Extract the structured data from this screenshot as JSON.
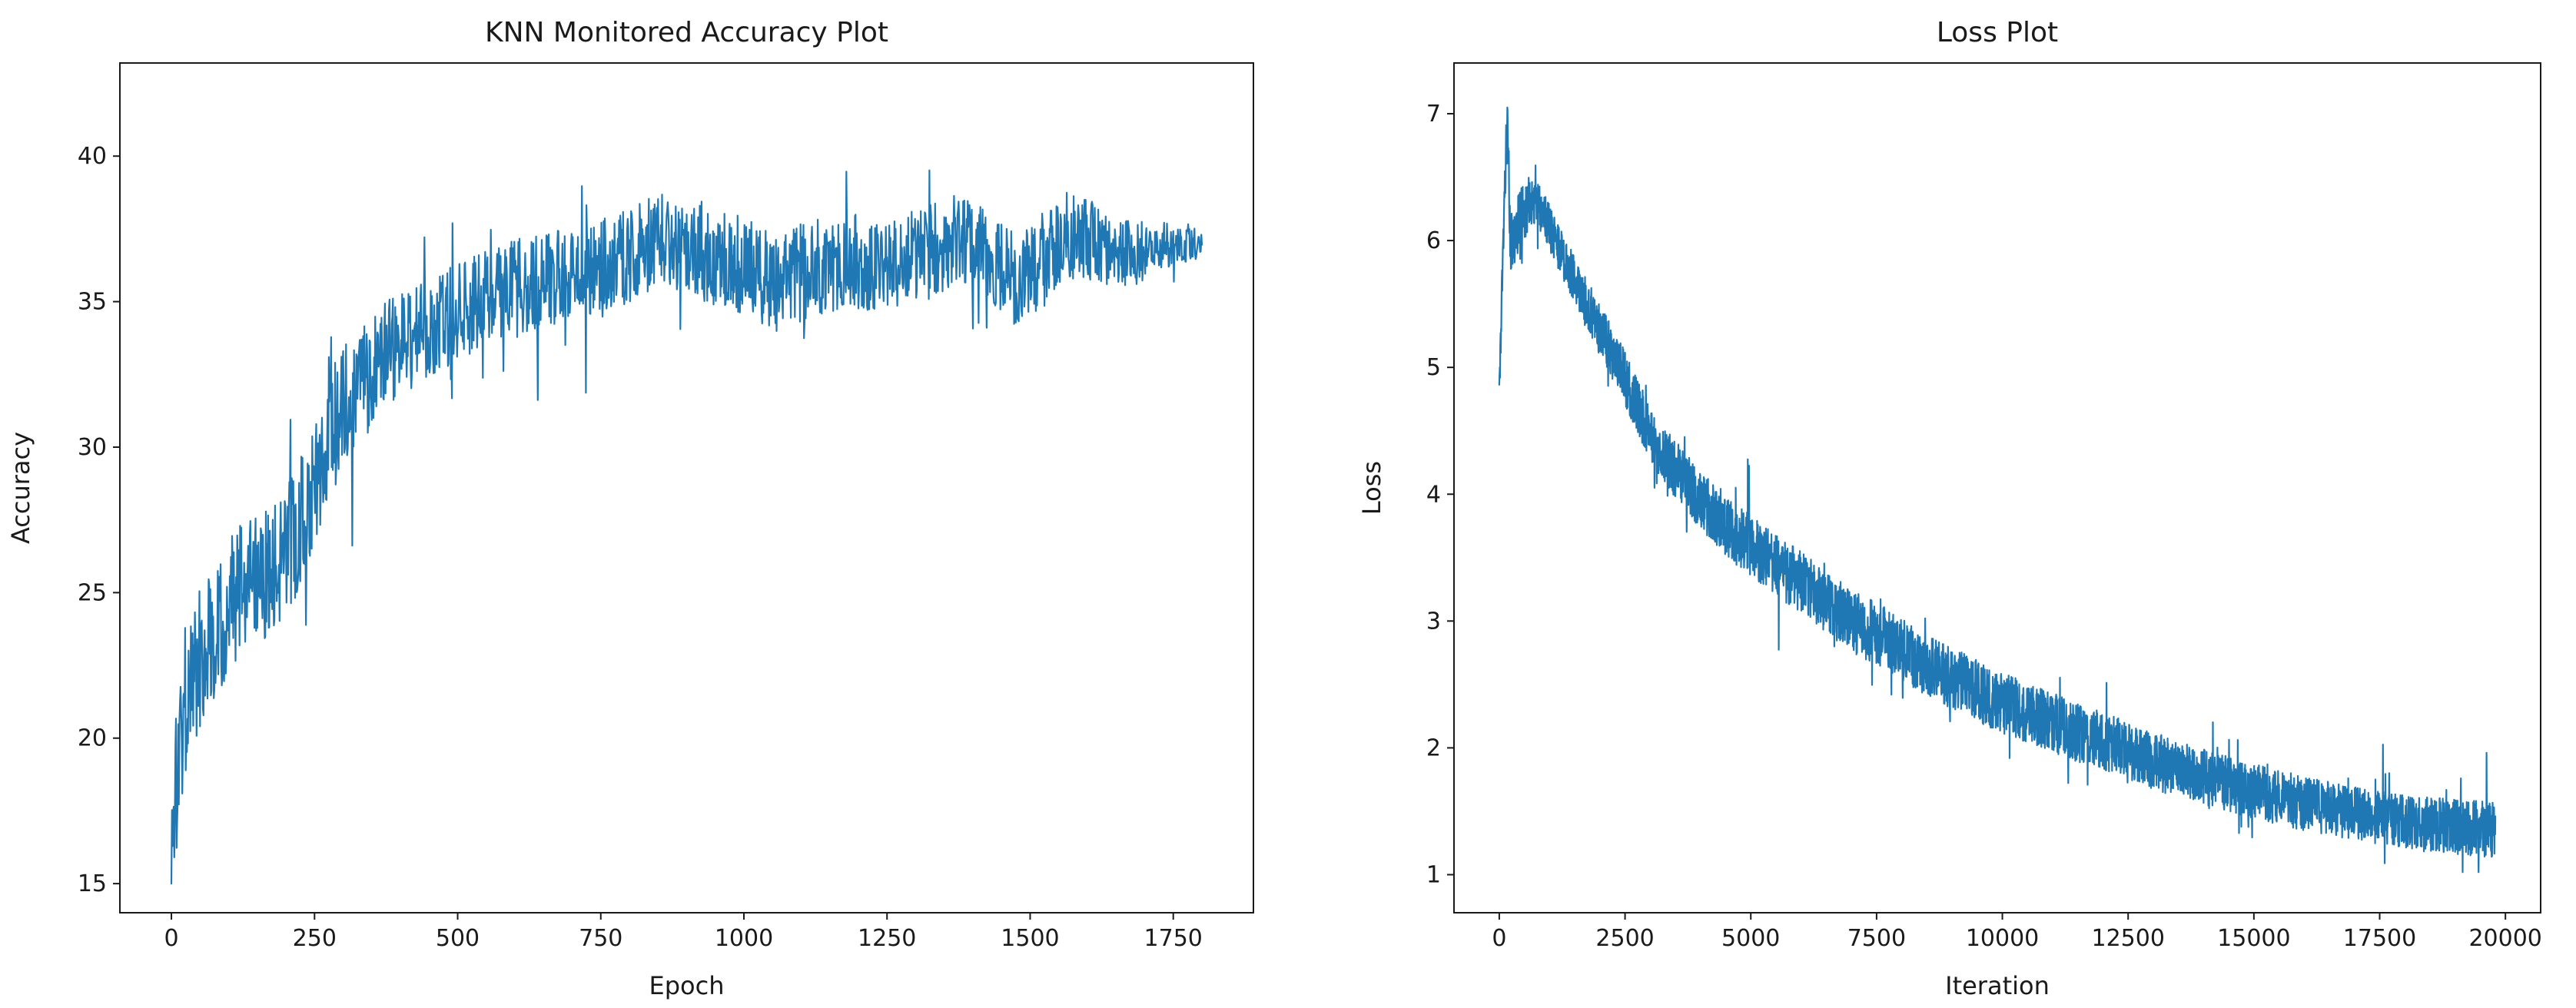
{
  "figure": {
    "background": "#ffffff",
    "text_color": "#1a1a1a"
  },
  "chart_data": [
    {
      "type": "line",
      "title": "KNN Monitored Accuracy Plot",
      "xlabel": "Epoch",
      "ylabel": "Accuracy",
      "xlim": [
        -90,
        1890
      ],
      "ylim": [
        14.0,
        43.2
      ],
      "xticks": [
        0,
        250,
        500,
        750,
        1000,
        1250,
        1500,
        1750
      ],
      "yticks": [
        15,
        20,
        25,
        30,
        35,
        40
      ],
      "line_color": "#1f77b4",
      "x_start": 0,
      "x_end": 1800,
      "x_step": 1,
      "y_clamp": [
        15.0,
        42.3
      ],
      "seed": 1337,
      "spike_chance": 0.05,
      "spike_scale": 1.9,
      "trend": [
        [
          0,
          16.5
        ],
        [
          20,
          21.0
        ],
        [
          40,
          22.5
        ],
        [
          80,
          24.0
        ],
        [
          120,
          25.0
        ],
        [
          160,
          25.5
        ],
        [
          200,
          26.5
        ],
        [
          240,
          28.0
        ],
        [
          270,
          30.0
        ],
        [
          300,
          31.5
        ],
        [
          340,
          32.5
        ],
        [
          380,
          33.2
        ],
        [
          420,
          33.8
        ],
        [
          470,
          34.3
        ],
        [
          520,
          34.8
        ],
        [
          600,
          35.5
        ],
        [
          700,
          36.0
        ],
        [
          800,
          36.6
        ],
        [
          870,
          37.2
        ],
        [
          920,
          36.8
        ],
        [
          1000,
          36.2
        ],
        [
          1060,
          35.6
        ],
        [
          1120,
          36.2
        ],
        [
          1180,
          36.4
        ],
        [
          1250,
          36.3
        ],
        [
          1320,
          36.8
        ],
        [
          1380,
          37.1
        ],
        [
          1430,
          36.5
        ],
        [
          1470,
          35.8
        ],
        [
          1520,
          36.2
        ],
        [
          1560,
          37.3
        ],
        [
          1620,
          37.0
        ],
        [
          1680,
          36.6
        ],
        [
          1720,
          36.9
        ],
        [
          1800,
          37.0
        ]
      ],
      "noise_band": [
        [
          0,
          2.8
        ],
        [
          60,
          2.6
        ],
        [
          150,
          2.2
        ],
        [
          250,
          2.3
        ],
        [
          350,
          1.9
        ],
        [
          500,
          1.7
        ],
        [
          700,
          1.6
        ],
        [
          900,
          1.7
        ],
        [
          1100,
          1.7
        ],
        [
          1300,
          1.6
        ],
        [
          1500,
          1.6
        ],
        [
          1650,
          1.3
        ],
        [
          1750,
          0.7
        ],
        [
          1800,
          0.5
        ]
      ]
    },
    {
      "type": "line",
      "title": "Loss Plot",
      "xlabel": "Iteration",
      "ylabel": "Loss",
      "xlim": [
        -900,
        20700
      ],
      "ylim": [
        0.7,
        7.4
      ],
      "xticks": [
        0,
        2500,
        5000,
        7500,
        10000,
        12500,
        15000,
        17500,
        20000
      ],
      "yticks": [
        1,
        2,
        3,
        4,
        5,
        6,
        7
      ],
      "line_color": "#1f77b4",
      "x_start": 0,
      "x_end": 19800,
      "x_step": 5,
      "y_clamp": [
        1.02,
        7.05
      ],
      "seed": 2024,
      "spike_chance": 0.03,
      "spike_scale": 1.8,
      "trend": [
        [
          0,
          4.8
        ],
        [
          100,
          6.3
        ],
        [
          160,
          7.0
        ],
        [
          220,
          6.0
        ],
        [
          300,
          6.05
        ],
        [
          450,
          6.2
        ],
        [
          600,
          6.3
        ],
        [
          800,
          6.25
        ],
        [
          1000,
          6.1
        ],
        [
          1300,
          5.85
        ],
        [
          1600,
          5.6
        ],
        [
          2000,
          5.3
        ],
        [
          2400,
          5.0
        ],
        [
          2800,
          4.65
        ],
        [
          3200,
          4.35
        ],
        [
          3600,
          4.15
        ],
        [
          4000,
          3.95
        ],
        [
          4500,
          3.75
        ],
        [
          5000,
          3.6
        ],
        [
          5500,
          3.45
        ],
        [
          6000,
          3.3
        ],
        [
          6500,
          3.15
        ],
        [
          7000,
          3.0
        ],
        [
          7500,
          2.9
        ],
        [
          8000,
          2.78
        ],
        [
          8500,
          2.65
        ],
        [
          9000,
          2.55
        ],
        [
          9500,
          2.45
        ],
        [
          10000,
          2.35
        ],
        [
          10500,
          2.28
        ],
        [
          11000,
          2.2
        ],
        [
          11500,
          2.12
        ],
        [
          12000,
          2.05
        ],
        [
          12500,
          1.98
        ],
        [
          13000,
          1.9
        ],
        [
          13500,
          1.83
        ],
        [
          14000,
          1.77
        ],
        [
          14500,
          1.71
        ],
        [
          15000,
          1.66
        ],
        [
          15500,
          1.61
        ],
        [
          16000,
          1.56
        ],
        [
          16500,
          1.52
        ],
        [
          17000,
          1.48
        ],
        [
          17500,
          1.45
        ],
        [
          18000,
          1.42
        ],
        [
          18500,
          1.4
        ],
        [
          19000,
          1.38
        ],
        [
          19500,
          1.36
        ],
        [
          19800,
          1.35
        ]
      ],
      "noise_band": [
        [
          0,
          0.15
        ],
        [
          200,
          0.25
        ],
        [
          1000,
          0.18
        ],
        [
          3000,
          0.22
        ],
        [
          6000,
          0.25
        ],
        [
          10000,
          0.24
        ],
        [
          14000,
          0.22
        ],
        [
          17000,
          0.21
        ],
        [
          19800,
          0.22
        ]
      ]
    }
  ]
}
